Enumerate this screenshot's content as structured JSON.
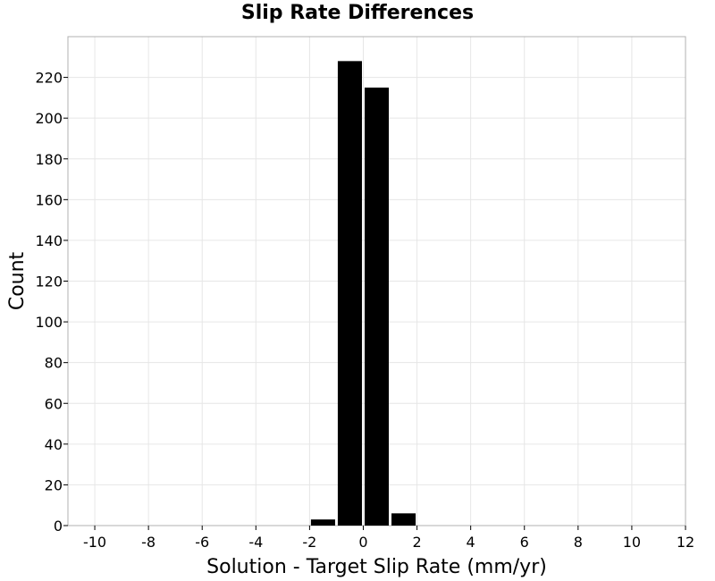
{
  "chart_data": {
    "type": "bar",
    "title": "Slip Rate Differences",
    "xlabel": "Solution - Target Slip Rate (mm/yr)",
    "ylabel": "Count",
    "xlim": [
      -11,
      12
    ],
    "ylim": [
      0,
      240
    ],
    "xticks": [
      -10,
      -8,
      -6,
      -4,
      -2,
      0,
      2,
      4,
      6,
      8,
      10,
      12
    ],
    "yticks": [
      0,
      20,
      40,
      60,
      80,
      100,
      120,
      140,
      160,
      180,
      200,
      220
    ],
    "bin_width": 1,
    "bins": [
      {
        "center": -1.5,
        "count": 3
      },
      {
        "center": -0.5,
        "count": 228
      },
      {
        "center": 0.5,
        "count": 215
      },
      {
        "center": 1.5,
        "count": 6
      }
    ],
    "grid": true,
    "bar_color": "#000000",
    "grid_color": "#e6e6e6",
    "frame_color": "#b0b0b0"
  }
}
